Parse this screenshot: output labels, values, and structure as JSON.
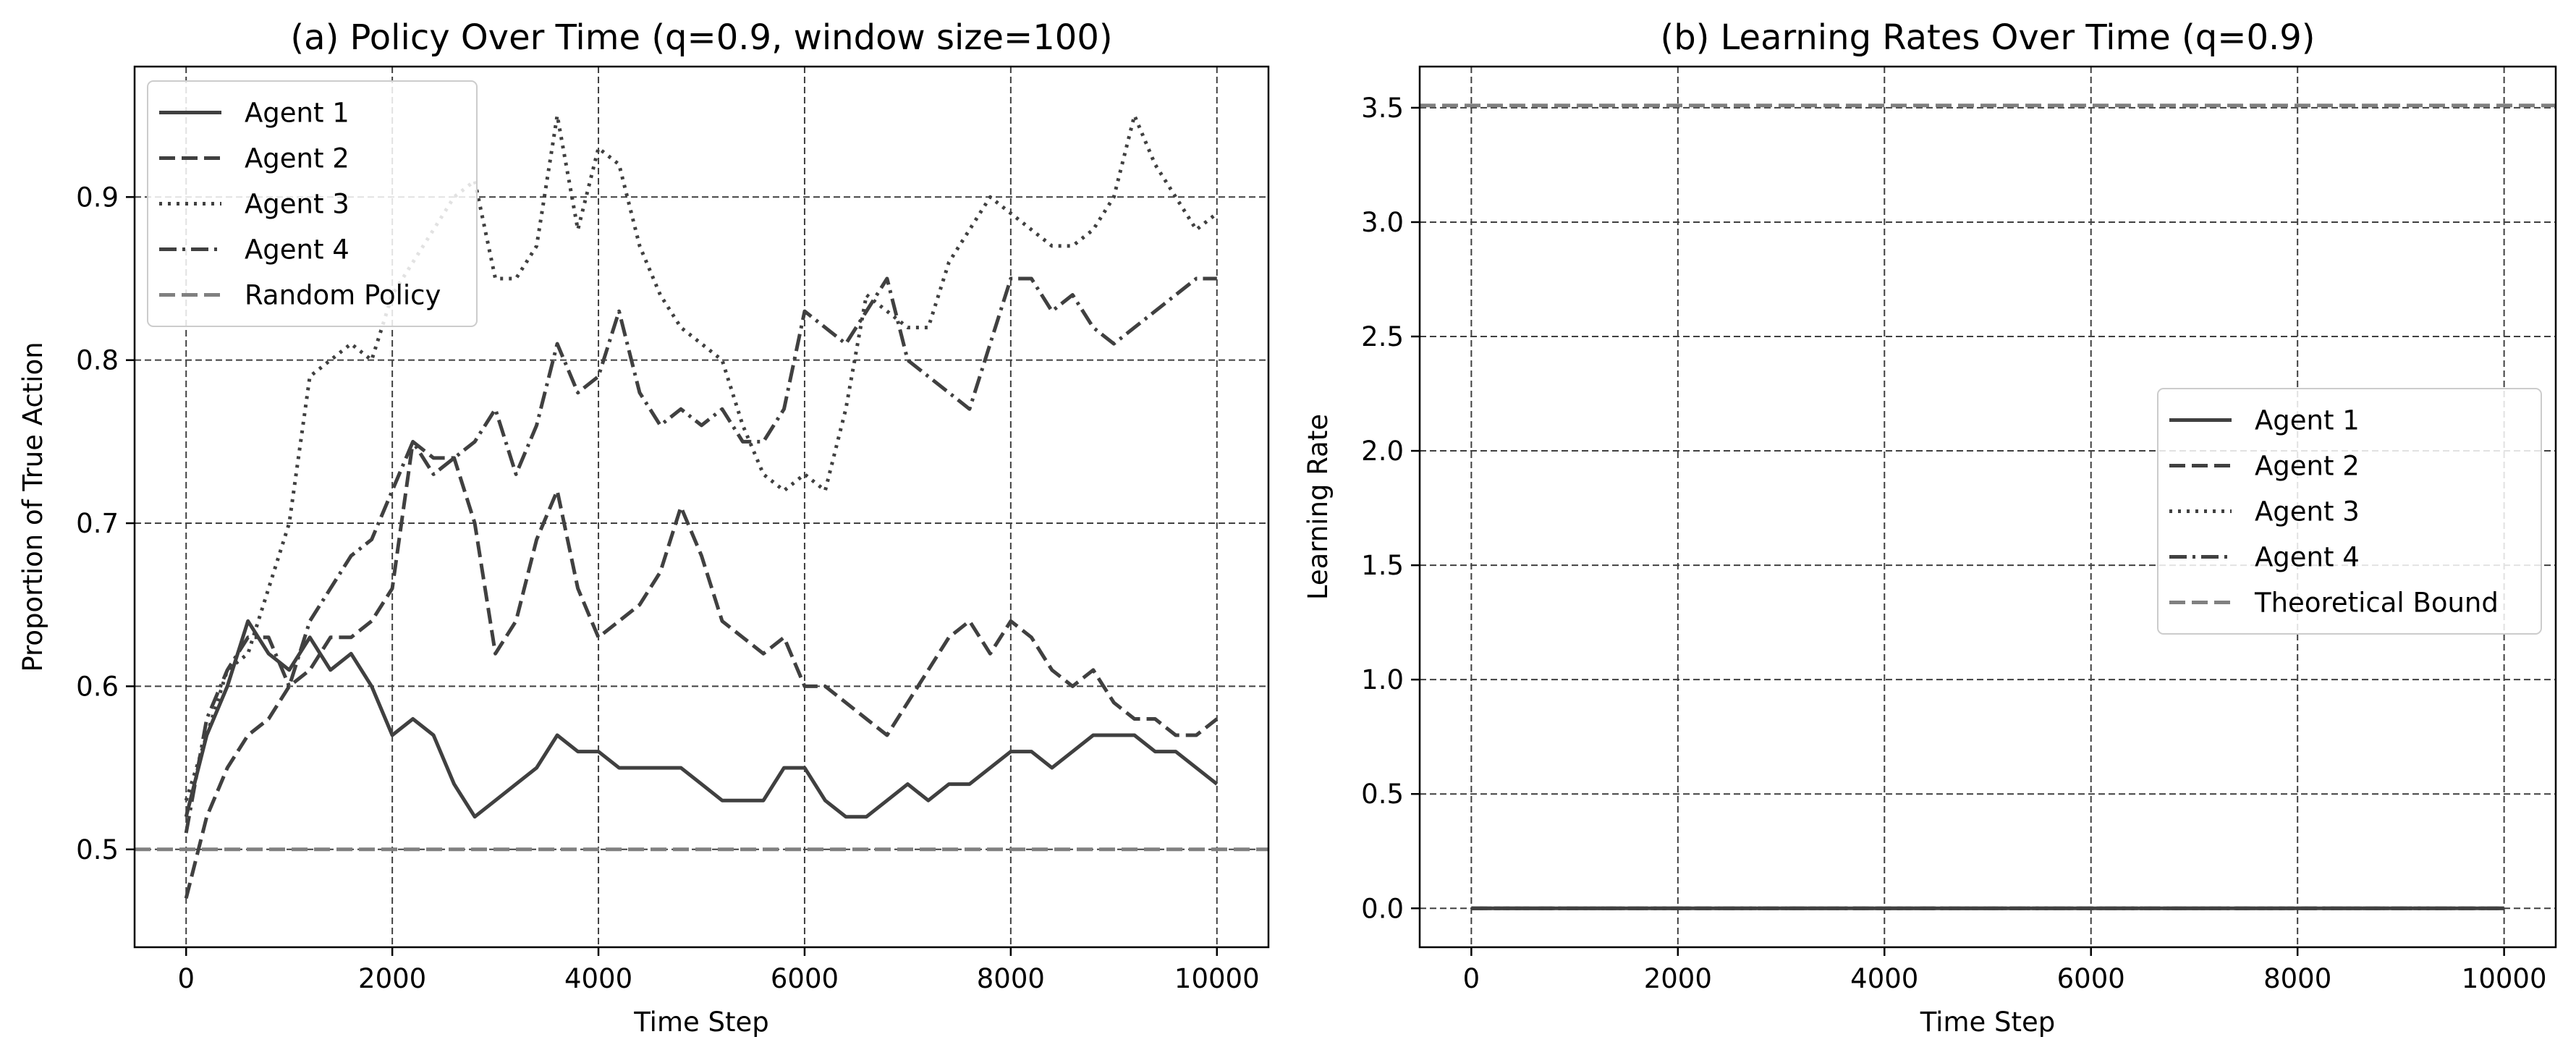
{
  "chart_data": [
    {
      "type": "line",
      "title": "(a) Policy Over Time (q=0.9, window size=100)",
      "xlabel": "Time Step",
      "ylabel": "Proportion of True Action",
      "xlim": [
        -500,
        10500
      ],
      "ylim": [
        0.44,
        0.98
      ],
      "xticks": [
        0,
        2000,
        4000,
        6000,
        8000,
        10000
      ],
      "xtick_labels": [
        "0",
        "2000",
        "4000",
        "6000",
        "8000",
        "10000"
      ],
      "yticks": [
        0.5,
        0.6,
        0.7,
        0.8,
        0.9
      ],
      "ytick_labels": [
        "0.5",
        "0.6",
        "0.7",
        "0.8",
        "0.9"
      ],
      "grid": true,
      "legend_position": "upper left",
      "series": [
        {
          "name": "Agent 1",
          "style": "solid",
          "x": [
            0,
            200,
            400,
            600,
            800,
            1000,
            1200,
            1400,
            1600,
            1800,
            2000,
            2200,
            2400,
            2600,
            2800,
            3000,
            3200,
            3400,
            3600,
            3800,
            4000,
            4200,
            4400,
            4600,
            4800,
            5000,
            5200,
            5400,
            5600,
            5800,
            6000,
            6200,
            6400,
            6600,
            6800,
            7000,
            7200,
            7400,
            7600,
            7800,
            8000,
            8200,
            8400,
            8600,
            8800,
            9000,
            9200,
            9400,
            9600,
            9800,
            10000
          ],
          "y": [
            0.52,
            0.57,
            0.6,
            0.64,
            0.62,
            0.61,
            0.63,
            0.61,
            0.62,
            0.6,
            0.57,
            0.58,
            0.57,
            0.54,
            0.52,
            0.53,
            0.54,
            0.55,
            0.57,
            0.56,
            0.56,
            0.55,
            0.55,
            0.55,
            0.55,
            0.54,
            0.53,
            0.53,
            0.53,
            0.55,
            0.55,
            0.53,
            0.52,
            0.52,
            0.53,
            0.54,
            0.53,
            0.54,
            0.54,
            0.55,
            0.56,
            0.56,
            0.55,
            0.56,
            0.57,
            0.57,
            0.57,
            0.56,
            0.56,
            0.55,
            0.54
          ]
        },
        {
          "name": "Agent 2",
          "style": "dashed",
          "x": [
            0,
            200,
            400,
            600,
            800,
            1000,
            1200,
            1400,
            1600,
            1800,
            2000,
            2200,
            2400,
            2600,
            2800,
            3000,
            3200,
            3400,
            3600,
            3800,
            4000,
            4200,
            4400,
            4600,
            4800,
            5000,
            5200,
            5400,
            5600,
            5800,
            6000,
            6200,
            6400,
            6600,
            6800,
            7000,
            7200,
            7400,
            7600,
            7800,
            8000,
            8200,
            8400,
            8600,
            8800,
            9000,
            9200,
            9400,
            9600,
            9800,
            10000
          ],
          "y": [
            0.47,
            0.52,
            0.55,
            0.57,
            0.58,
            0.6,
            0.61,
            0.63,
            0.63,
            0.64,
            0.66,
            0.75,
            0.74,
            0.74,
            0.7,
            0.62,
            0.64,
            0.69,
            0.72,
            0.66,
            0.63,
            0.64,
            0.65,
            0.67,
            0.71,
            0.68,
            0.64,
            0.63,
            0.62,
            0.63,
            0.6,
            0.6,
            0.59,
            0.58,
            0.57,
            0.59,
            0.61,
            0.63,
            0.64,
            0.62,
            0.64,
            0.63,
            0.61,
            0.6,
            0.61,
            0.59,
            0.58,
            0.58,
            0.57,
            0.57,
            0.58
          ]
        },
        {
          "name": "Agent 3",
          "style": "dotted",
          "x": [
            0,
            200,
            400,
            600,
            800,
            1000,
            1200,
            1400,
            1600,
            1800,
            2000,
            2200,
            2400,
            2600,
            2800,
            3000,
            3200,
            3400,
            3600,
            3800,
            4000,
            4200,
            4400,
            4600,
            4800,
            5000,
            5200,
            5400,
            5600,
            5800,
            6000,
            6200,
            6400,
            6600,
            6800,
            7000,
            7200,
            7400,
            7600,
            7800,
            8000,
            8200,
            8400,
            8600,
            8800,
            9000,
            9200,
            9400,
            9600,
            9800,
            10000
          ],
          "y": [
            0.53,
            0.57,
            0.61,
            0.62,
            0.66,
            0.7,
            0.79,
            0.8,
            0.81,
            0.8,
            0.84,
            0.86,
            0.88,
            0.9,
            0.91,
            0.85,
            0.85,
            0.87,
            0.95,
            0.88,
            0.93,
            0.92,
            0.87,
            0.84,
            0.82,
            0.81,
            0.8,
            0.76,
            0.73,
            0.72,
            0.73,
            0.72,
            0.77,
            0.84,
            0.83,
            0.82,
            0.82,
            0.86,
            0.88,
            0.9,
            0.89,
            0.88,
            0.87,
            0.87,
            0.88,
            0.9,
            0.95,
            0.92,
            0.9,
            0.88,
            0.89
          ]
        },
        {
          "name": "Agent 4",
          "style": "dashdot",
          "x": [
            0,
            200,
            400,
            600,
            800,
            1000,
            1200,
            1400,
            1600,
            1800,
            2000,
            2200,
            2400,
            2600,
            2800,
            3000,
            3200,
            3400,
            3600,
            3800,
            4000,
            4200,
            4400,
            4600,
            4800,
            5000,
            5200,
            5400,
            5600,
            5800,
            6000,
            6200,
            6400,
            6600,
            6800,
            7000,
            7200,
            7400,
            7600,
            7800,
            8000,
            8200,
            8400,
            8600,
            8800,
            9000,
            9200,
            9400,
            9600,
            9800,
            10000
          ],
          "y": [
            0.51,
            0.58,
            0.61,
            0.63,
            0.63,
            0.6,
            0.64,
            0.66,
            0.68,
            0.69,
            0.72,
            0.75,
            0.73,
            0.74,
            0.75,
            0.77,
            0.73,
            0.76,
            0.81,
            0.78,
            0.79,
            0.83,
            0.78,
            0.76,
            0.77,
            0.76,
            0.77,
            0.75,
            0.75,
            0.77,
            0.83,
            0.82,
            0.81,
            0.83,
            0.85,
            0.8,
            0.79,
            0.78,
            0.77,
            0.81,
            0.85,
            0.85,
            0.83,
            0.84,
            0.82,
            0.81,
            0.82,
            0.83,
            0.84,
            0.85,
            0.85
          ]
        },
        {
          "name": "Random Policy",
          "style": "dashed-light",
          "x": [
            -500,
            10500
          ],
          "y": [
            0.5,
            0.5
          ]
        }
      ]
    },
    {
      "type": "line",
      "title": "(b) Learning Rates Over Time (q=0.9)",
      "xlabel": "Time Step",
      "ylabel": "Learning Rate",
      "xlim": [
        -500,
        10500
      ],
      "ylim": [
        -0.17,
        3.68
      ],
      "xticks": [
        0,
        2000,
        4000,
        6000,
        8000,
        10000
      ],
      "xtick_labels": [
        "0",
        "2000",
        "4000",
        "6000",
        "8000",
        "10000"
      ],
      "yticks": [
        0.0,
        0.5,
        1.0,
        1.5,
        2.0,
        2.5,
        3.0,
        3.5
      ],
      "ytick_labels": [
        "0.0",
        "0.5",
        "1.0",
        "1.5",
        "2.0",
        "2.5",
        "3.0",
        "3.5"
      ],
      "grid": true,
      "legend_position": "center right",
      "series": [
        {
          "name": "Agent 1",
          "style": "solid",
          "x": [
            0,
            10000
          ],
          "y": [
            0.0,
            0.0
          ]
        },
        {
          "name": "Agent 2",
          "style": "dashed",
          "x": [
            0,
            10000
          ],
          "y": [
            0.0,
            0.0
          ]
        },
        {
          "name": "Agent 3",
          "style": "dotted",
          "x": [
            0,
            10000
          ],
          "y": [
            0.0,
            0.0
          ]
        },
        {
          "name": "Agent 4",
          "style": "dashdot",
          "x": [
            0,
            10000
          ],
          "y": [
            0.0,
            0.0
          ]
        },
        {
          "name": "Theoretical Bound",
          "style": "dashed-light",
          "x": [
            -500,
            10500
          ],
          "y": [
            3.51,
            3.51
          ]
        }
      ]
    }
  ],
  "colors": {
    "line": "#404040",
    "bound": "#808080",
    "grid": "#404040",
    "axes": "#000000"
  }
}
